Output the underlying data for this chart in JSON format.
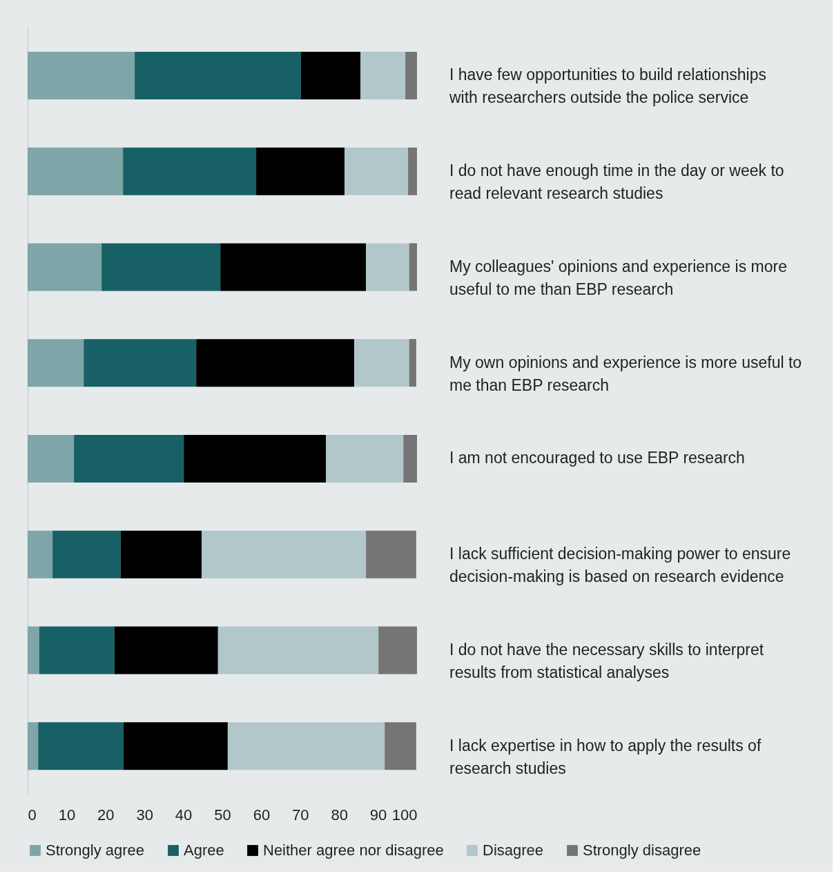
{
  "chart_data": {
    "type": "bar",
    "orientation": "horizontal",
    "stacked": true,
    "categories": [
      "I have few opportunities to build relationships with researchers outside the police service",
      "I do not have enough time in the day or week to read relevant research studies",
      "My colleagues' opinions and experience is more useful to me than EBP research",
      "My own opinions and experience is more useful to me than EBP research",
      "I am not encouraged to use EBP research",
      "I lack sufficient decision-making power to ensure decision-making is based on research evidence",
      "I do not have the necessary skills to interpret results from statistical analyses",
      "I lack expertise in how to apply the results of research studies"
    ],
    "series": [
      {
        "name": "Strongly agree",
        "color": "#7ea5a7",
        "values": [
          27.5,
          24.5,
          19,
          14.4,
          11.9,
          6.4,
          3,
          2.7
        ]
      },
      {
        "name": "Agree",
        "color": "#176066",
        "values": [
          42.7,
          34.2,
          30.5,
          28.9,
          28.2,
          17.5,
          19.3,
          21.9
        ]
      },
      {
        "name": "Neither agree nor disagree",
        "color": "#000000",
        "values": [
          15.3,
          22.7,
          37.4,
          40.6,
          36.5,
          20.8,
          26.6,
          26.8
        ]
      },
      {
        "name": "Disagree",
        "color": "#b2c7ca",
        "values": [
          11.5,
          16.3,
          11.1,
          14.1,
          19.9,
          42.2,
          41.2,
          40.3
        ]
      },
      {
        "name": "Strongly disagree",
        "color": "#747574",
        "values": [
          3,
          2.3,
          2,
          1.8,
          3.5,
          12.9,
          9.9,
          8.1
        ]
      }
    ],
    "xlim": [
      0,
      100
    ],
    "xticks": [
      0,
      10,
      20,
      30,
      40,
      50,
      60,
      70,
      80,
      90,
      100
    ],
    "grid": false,
    "legend": "bottom",
    "tick_labels": "x"
  }
}
